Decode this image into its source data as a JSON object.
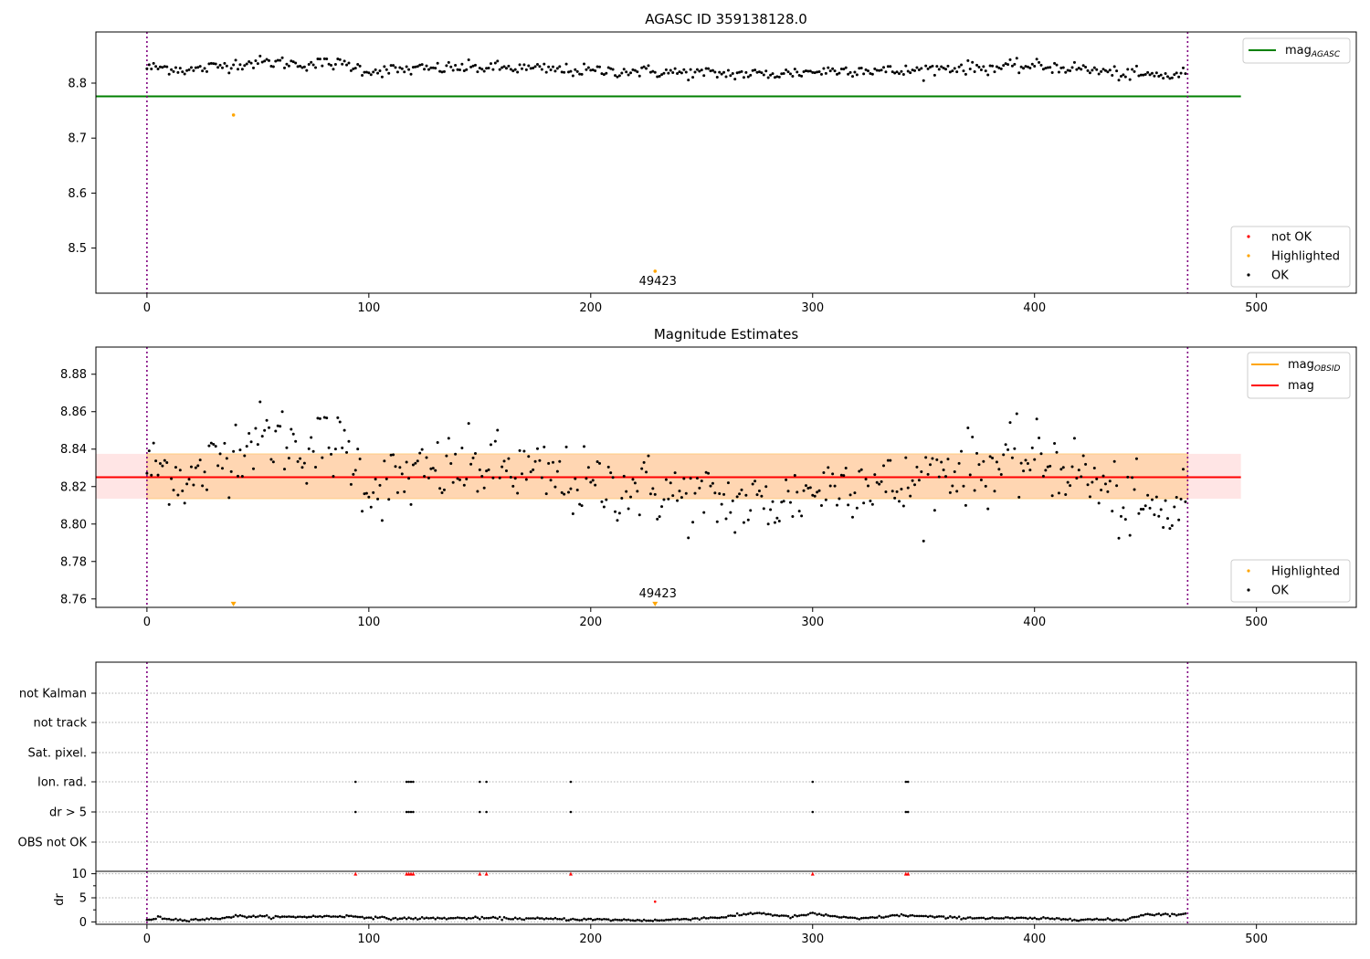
{
  "chart_data": [
    {
      "type": "scatter",
      "title": "AGASC ID 359138128.0",
      "xlabel": "",
      "ylabel": "",
      "xlim": [
        -23,
        545
      ],
      "ylim": [
        8.418,
        8.893
      ],
      "x_ticks": [
        0,
        100,
        200,
        300,
        400,
        500
      ],
      "y_ticks": [
        8.5,
        8.6,
        8.7,
        8.8
      ],
      "x_tick_labels": [
        "0",
        "100",
        "200",
        "300",
        "400",
        "500"
      ],
      "y_tick_labels": [
        "8.5",
        "8.6",
        "8.7",
        "8.8"
      ],
      "vlines": [
        0,
        469
      ],
      "hline": {
        "name": "mag_AGASC",
        "y": 8.776,
        "x_range": [
          -23,
          493
        ],
        "color": "#008000"
      },
      "annotation": {
        "text": "49423",
        "x": 229,
        "y": 8.43
      },
      "legend_lines": [
        {
          "label": "mag",
          "sub": "AGASC",
          "color": "#008000"
        }
      ],
      "legend_markers": [
        {
          "label": "not OK",
          "color": "#ff0000"
        },
        {
          "label": "Highlighted",
          "color": "#ffa500"
        },
        {
          "label": "OK",
          "color": "#000000"
        }
      ],
      "highlighted_points": [
        {
          "x": 39,
          "y": 8.742
        },
        {
          "x": 229,
          "y": 8.458
        }
      ],
      "ok_series": {
        "name": "OK",
        "n": 469,
        "mean": 8.825,
        "anchors_x": [
          0,
          10,
          20,
          30,
          40,
          50,
          60,
          70,
          80,
          90,
          100,
          120,
          140,
          160,
          180,
          200,
          220,
          240,
          260,
          280,
          300,
          320,
          340,
          360,
          380,
          400,
          420,
          440,
          460,
          469
        ],
        "anchors_y": [
          8.83,
          8.83,
          8.822,
          8.832,
          8.842,
          8.846,
          8.846,
          8.84,
          8.843,
          8.84,
          8.82,
          8.825,
          8.83,
          8.83,
          8.825,
          8.82,
          8.82,
          8.815,
          8.812,
          8.81,
          8.818,
          8.825,
          8.818,
          8.83,
          8.83,
          8.835,
          8.828,
          8.81,
          8.805,
          8.815
        ]
      }
    },
    {
      "type": "scatter",
      "title": "Magnitude Estimates",
      "xlabel": "",
      "ylabel": "",
      "xlim": [
        -23,
        545
      ],
      "ylim": [
        8.7555,
        8.8945
      ],
      "x_ticks": [
        0,
        100,
        200,
        300,
        400,
        500
      ],
      "y_ticks": [
        8.76,
        8.78,
        8.8,
        8.82,
        8.84,
        8.86,
        8.88
      ],
      "x_tick_labels": [
        "0",
        "100",
        "200",
        "300",
        "400",
        "500"
      ],
      "y_tick_labels": [
        "8.76",
        "8.78",
        "8.80",
        "8.82",
        "8.84",
        "8.86",
        "8.88"
      ],
      "vlines": [
        0,
        469
      ],
      "mag_line": {
        "name": "mag",
        "y": 8.825,
        "x_range": [
          -23,
          493
        ],
        "band": [
          8.8135,
          8.8375
        ],
        "color": "#ff0000"
      },
      "obsid_band": {
        "name": "mag_OBSID",
        "y_range": [
          8.8135,
          8.8375
        ],
        "x_range": [
          0,
          469
        ],
        "color": "#ffa500"
      },
      "annotation": {
        "text": "49423",
        "x": 229,
        "y": 8.7595
      },
      "legend_lines": [
        {
          "label": "mag",
          "sub": "OBSID",
          "color": "#ffa500"
        },
        {
          "label": "mag",
          "sub": "",
          "color": "#ff0000"
        }
      ],
      "legend_markers": [
        {
          "label": "Highlighted",
          "color": "#ffa500"
        },
        {
          "label": "OK",
          "color": "#000000"
        }
      ],
      "highlighted_points": [
        {
          "x": 39,
          "y": 8.757
        },
        {
          "x": 229,
          "y": 8.757
        }
      ],
      "ok_series": {
        "name": "OK",
        "n": 469,
        "anchors_x": [
          0,
          10,
          20,
          30,
          40,
          50,
          60,
          70,
          80,
          90,
          100,
          120,
          140,
          160,
          180,
          200,
          220,
          240,
          260,
          280,
          300,
          320,
          340,
          360,
          380,
          400,
          420,
          440,
          460,
          469
        ],
        "anchors_y": [
          8.83,
          8.83,
          8.822,
          8.832,
          8.842,
          8.846,
          8.846,
          8.84,
          8.843,
          8.84,
          8.82,
          8.825,
          8.83,
          8.83,
          8.825,
          8.82,
          8.82,
          8.815,
          8.812,
          8.81,
          8.818,
          8.825,
          8.818,
          8.83,
          8.83,
          8.835,
          8.828,
          8.81,
          8.805,
          8.815
        ]
      }
    },
    {
      "type": "scatter",
      "title": "",
      "xlabel": "",
      "ylabel": "",
      "xlim": [
        -23,
        545
      ],
      "vlines": [
        0,
        469
      ],
      "flag_labels": [
        "not Kalman",
        "not track",
        "Sat. pixel.",
        "Ion. rad.",
        "dr > 5",
        "OBS not OK"
      ],
      "flag_points": {
        "Ion. rad.": [
          94,
          117,
          118,
          119,
          120,
          150,
          153,
          191,
          300,
          342,
          343
        ],
        "dr > 5": [
          94,
          117,
          118,
          119,
          120,
          150,
          153,
          191,
          300,
          342,
          343
        ]
      }
    },
    {
      "type": "scatter",
      "title": "",
      "xlabel": "",
      "ylabel": "dr",
      "xlim": [
        -23,
        545
      ],
      "ylim": [
        -0.5,
        10.5
      ],
      "x_ticks": [
        0,
        100,
        200,
        300,
        400,
        500
      ],
      "y_ticks": [
        0,
        5,
        10
      ],
      "x_tick_labels": [
        "0",
        "100",
        "200",
        "300",
        "400",
        "500"
      ],
      "y_tick_labels": [
        "0",
        "5",
        "10"
      ],
      "vlines": [
        0,
        469
      ],
      "not_ok_points": [
        94,
        117,
        118,
        119,
        120,
        150,
        153,
        191,
        300,
        342,
        343
      ],
      "not_ok_y": 10,
      "highlighted_points": [
        {
          "x": 229,
          "y": 4.2
        }
      ],
      "ok_series": {
        "name": "OK",
        "n": 469,
        "anchors_x": [
          0,
          5,
          15,
          30,
          40,
          60,
          90,
          110,
          150,
          200,
          230,
          260,
          275,
          290,
          300,
          320,
          340,
          360,
          400,
          440,
          450,
          469
        ],
        "anchors_y": [
          0.3,
          0.9,
          0.4,
          0.6,
          1.2,
          1.0,
          1.2,
          0.7,
          0.8,
          0.5,
          0.3,
          1.0,
          1.9,
          1.0,
          1.7,
          0.6,
          1.4,
          0.9,
          0.7,
          0.4,
          1.6,
          1.5
        ]
      }
    }
  ]
}
